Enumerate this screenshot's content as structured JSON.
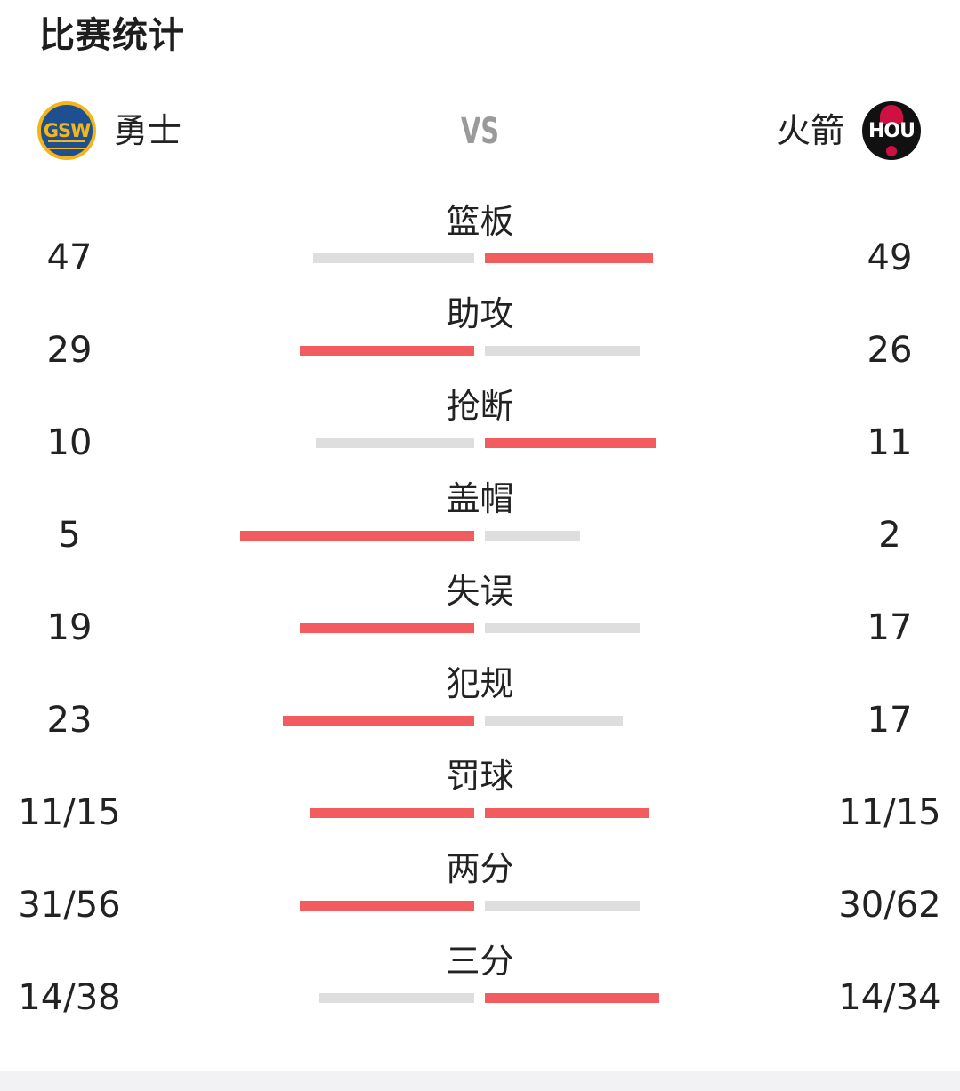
{
  "title": "比赛统计",
  "home": {
    "name": "勇士",
    "logo_text": "GSW",
    "logo_icon": "warriors-logo-icon"
  },
  "away": {
    "name": "火箭",
    "logo_text": "HOU",
    "logo_icon": "rockets-logo-icon"
  },
  "vs": "VS",
  "colors": {
    "leader_bar": "#f25c5f",
    "trailer_bar": "#dedede",
    "vs_text": "#9a9a9a"
  },
  "stats": [
    {
      "label": "篮板",
      "home": "47",
      "away": "49",
      "home_share": 0.49,
      "away_share": 0.51
    },
    {
      "label": "助攻",
      "home": "29",
      "away": "26",
      "home_share": 0.53,
      "away_share": 0.47
    },
    {
      "label": "抢断",
      "home": "10",
      "away": "11",
      "home_share": 0.48,
      "away_share": 0.52
    },
    {
      "label": "盖帽",
      "home": "5",
      "away": "2",
      "home_share": 0.71,
      "away_share": 0.29
    },
    {
      "label": "失误",
      "home": "19",
      "away": "17",
      "home_share": 0.53,
      "away_share": 0.47
    },
    {
      "label": "犯规",
      "home": "23",
      "away": "17",
      "home_share": 0.58,
      "away_share": 0.42
    },
    {
      "label": "罚球",
      "home": "11/15",
      "away": "11/15",
      "home_share": 0.5,
      "away_share": 0.5
    },
    {
      "label": "两分",
      "home": "31/56",
      "away": "30/62",
      "home_share": 0.53,
      "away_share": 0.47
    },
    {
      "label": "三分",
      "home": "14/38",
      "away": "14/34",
      "home_share": 0.47,
      "away_share": 0.53
    }
  ]
}
